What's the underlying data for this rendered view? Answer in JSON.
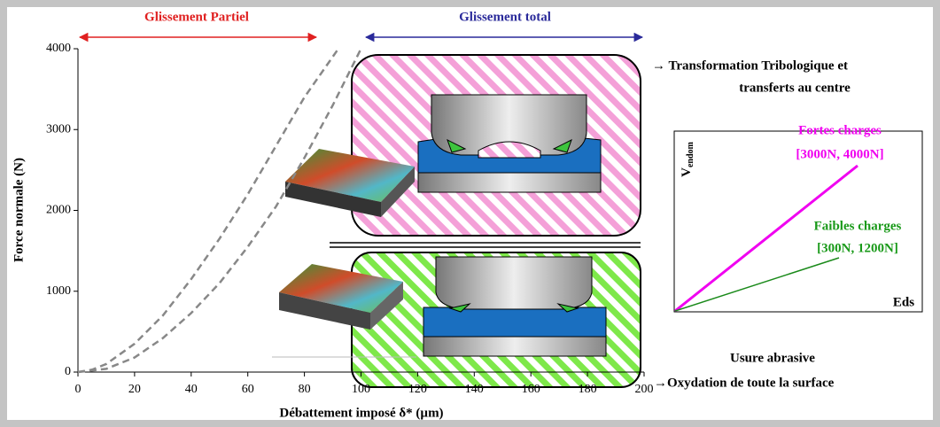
{
  "chart_data": {
    "type": "line",
    "xlabel": "Débattement imposé δ* (µm)",
    "ylabel": "Force normale (N)",
    "xlim": [
      0,
      200
    ],
    "xticks": [
      0,
      20,
      40,
      60,
      80,
      100,
      120,
      140,
      160,
      180,
      200
    ],
    "ylim": [
      0,
      4000
    ],
    "yticks": [
      0,
      1000,
      2000,
      3000,
      4000
    ],
    "series": [
      {
        "color": "#888888",
        "x": [
          0,
          5,
          10,
          20,
          30,
          40,
          50,
          60,
          70,
          80,
          92
        ],
        "values": [
          0,
          30,
          100,
          350,
          700,
          1150,
          1650,
          2200,
          2800,
          3400,
          4000
        ]
      },
      {
        "color": "#888888",
        "x": [
          0,
          10,
          20,
          30,
          40,
          50,
          60,
          70,
          80,
          90,
          100
        ],
        "values": [
          0,
          40,
          180,
          420,
          730,
          1100,
          1550,
          2050,
          2650,
          3300,
          4000
        ]
      }
    ],
    "annotations": {
      "partial": "Glissement Partiel",
      "total": "Glissement total",
      "transfo1": "→ Transformation Tribologique et",
      "transfo2": "transferts au centre",
      "usure": "Usure abrasive",
      "oxydation": "→Oxydation de toute la surface"
    },
    "inset": {
      "ylabel": "V",
      "ylabel_sub": "endom",
      "xlabel": "Eds",
      "high_name": "Fortes charges",
      "high_range": "[3000N, 4000N]",
      "low_name": "Faibles charges",
      "low_range": "[300N, 1200N]"
    }
  }
}
